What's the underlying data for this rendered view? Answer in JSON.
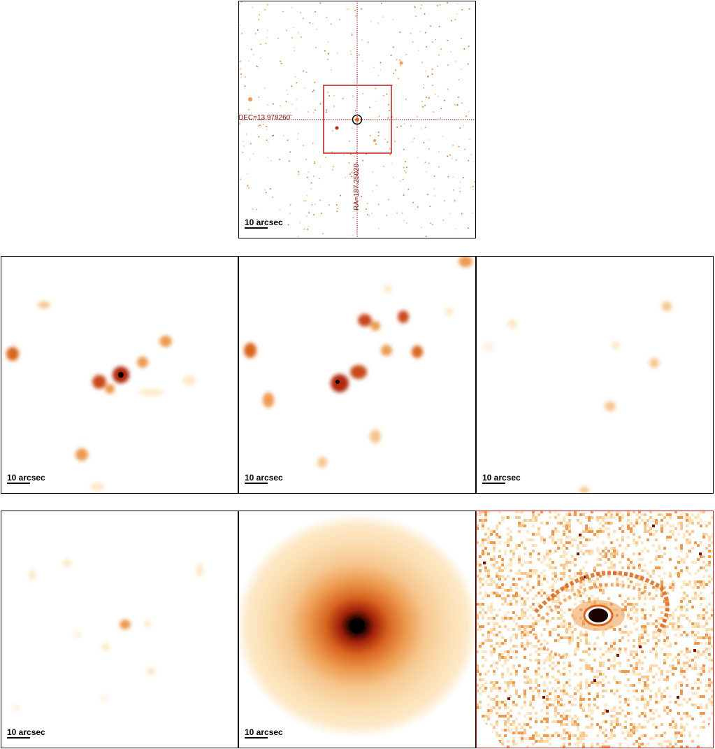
{
  "panels": {
    "overview": {
      "scale_label": "10 arcsec",
      "dec_label": "DEC=13.978260",
      "ra_label": "RA=187.25020"
    },
    "band1": {
      "scale_label": "10 arcsec"
    },
    "band2": {
      "scale_label": "10 arcsec"
    },
    "band3": {
      "scale_label": "10 arcsec"
    },
    "band4": {
      "scale_label": "10 arcsec"
    },
    "optical": {
      "scale_label": "10 arcsec"
    },
    "residual": {}
  },
  "colors": {
    "frame": "#000000",
    "crosshair": "#8b1010",
    "cutout_box": "#c01818",
    "residual_frame": "#c01818",
    "colormap": [
      "#ffffff",
      "#fde9c8",
      "#f6c78f",
      "#ec9a4f",
      "#d9661f",
      "#b02a0c",
      "#5a0a04",
      "#000000"
    ]
  }
}
